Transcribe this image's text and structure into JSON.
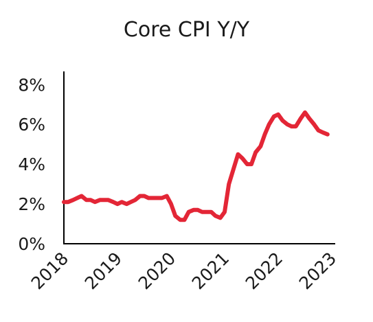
{
  "chart_data": {
    "type": "line",
    "title": "Core CPI Y/Y",
    "xlabel": "",
    "ylabel": "",
    "x_ticks": [
      "2018",
      "2019",
      "2020",
      "2021",
      "2022",
      "2023"
    ],
    "y_ticks": [
      "0%",
      "2%",
      "4%",
      "6%",
      "8%"
    ],
    "xlim": [
      2018.0,
      2023.0
    ],
    "ylim": [
      0,
      8.7
    ],
    "grid": false,
    "legend": "none",
    "line_color": "#e32636",
    "series": [
      {
        "x": [
          2018.0,
          2018.08,
          2018.17,
          2018.25,
          2018.33,
          2018.42,
          2018.5,
          2018.58,
          2018.67,
          2018.75,
          2018.83,
          2018.92,
          2019.0,
          2019.08,
          2019.17,
          2019.25,
          2019.33,
          2019.42,
          2019.5,
          2019.58,
          2019.67,
          2019.75,
          2019.83,
          2019.92,
          2020.0,
          2020.08,
          2020.17,
          2020.25,
          2020.33,
          2020.42,
          2020.5,
          2020.58,
          2020.67,
          2020.75,
          2020.83,
          2020.92,
          2021.0,
          2021.08,
          2021.17,
          2021.25,
          2021.33,
          2021.42,
          2021.5,
          2021.58,
          2021.67,
          2021.75,
          2021.83,
          2021.92,
          2022.0,
          2022.08,
          2022.17,
          2022.25,
          2022.33,
          2022.42,
          2022.5,
          2022.58,
          2022.67,
          2022.75,
          2022.83,
          2022.92
        ],
        "values": [
          2.1,
          2.1,
          2.2,
          2.3,
          2.4,
          2.2,
          2.2,
          2.1,
          2.2,
          2.2,
          2.2,
          2.1,
          2.0,
          2.1,
          2.0,
          2.1,
          2.2,
          2.4,
          2.4,
          2.3,
          2.3,
          2.3,
          2.3,
          2.4,
          2.0,
          1.4,
          1.2,
          1.2,
          1.6,
          1.7,
          1.7,
          1.6,
          1.6,
          1.6,
          1.4,
          1.3,
          1.6,
          3.0,
          3.8,
          4.5,
          4.3,
          4.0,
          4.0,
          4.6,
          4.9,
          5.5,
          6.0,
          6.4,
          6.5,
          6.2,
          6.0,
          5.9,
          5.9,
          6.3,
          6.6,
          6.3,
          6.0,
          5.7,
          5.6,
          5.5
        ]
      }
    ]
  }
}
